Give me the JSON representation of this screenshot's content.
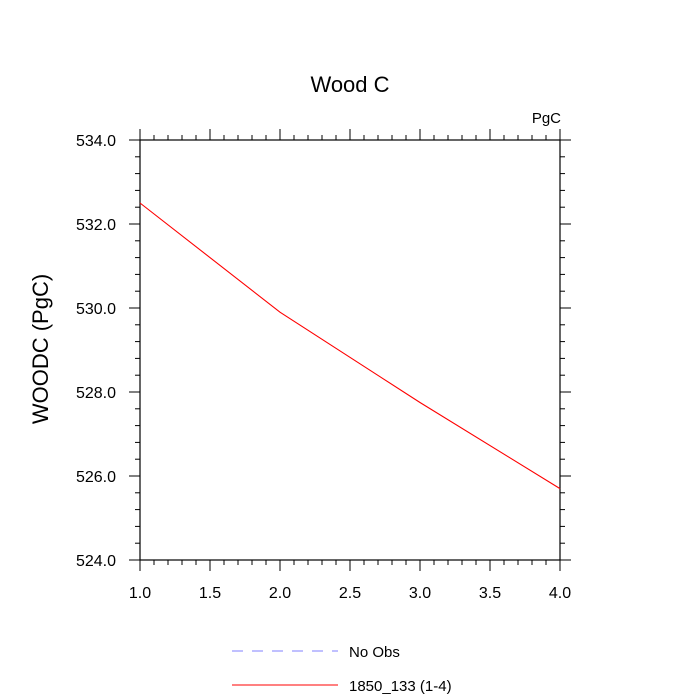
{
  "chart_data": {
    "type": "line",
    "title": "Wood C",
    "units_label": "PgC",
    "xlabel": "",
    "ylabel": "WOODC  (PgC)",
    "xlim": [
      1.0,
      4.0
    ],
    "ylim": [
      524.0,
      534.0
    ],
    "x_ticks": [
      "1.0",
      "1.5",
      "2.0",
      "2.5",
      "3.0",
      "3.5",
      "4.0"
    ],
    "y_ticks": [
      "524.0",
      "526.0",
      "528.0",
      "530.0",
      "532.0",
      "534.0"
    ],
    "series": [
      {
        "name": "No Obs",
        "x": [],
        "y": [],
        "color": "#8080ff",
        "dash": "dashed"
      },
      {
        "name": "1850_133 (1-4)",
        "x": [
          1,
          2,
          3,
          4
        ],
        "y": [
          532.5,
          529.9,
          527.75,
          525.7
        ],
        "color": "#ff0000",
        "dash": "solid"
      }
    ]
  }
}
